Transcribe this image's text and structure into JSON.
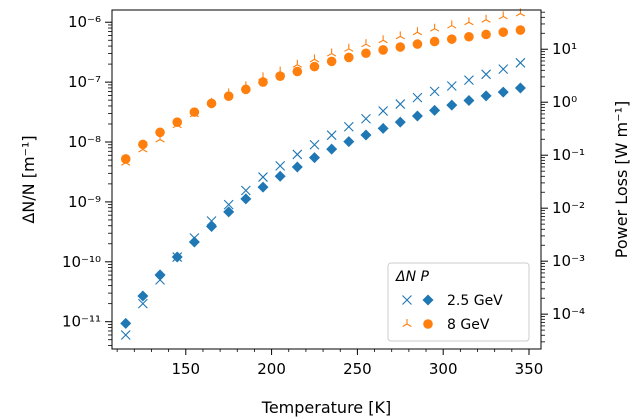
{
  "chart_data": {
    "type": "scatter",
    "x": [
      115,
      125,
      135,
      145,
      155,
      165,
      175,
      185,
      195,
      205,
      215,
      225,
      235,
      245,
      255,
      265,
      275,
      285,
      295,
      305,
      315,
      325,
      335,
      345
    ],
    "xlabel": "Temperature [K]",
    "xlim": [
      107,
      357
    ],
    "xticks": [
      150,
      200,
      250,
      300,
      350
    ],
    "left_axis": {
      "ylabel": "ΔN/N [m⁻¹]",
      "scale": "log",
      "ylim": [
        3.5e-12,
        1.6e-06
      ],
      "ticks": [
        {
          "value": 1e-11,
          "label": "10⁻¹¹"
        },
        {
          "value": 1e-10,
          "label": "10⁻¹⁰"
        },
        {
          "value": 1e-09,
          "label": "10⁻⁹"
        },
        {
          "value": 1e-08,
          "label": "10⁻⁸"
        },
        {
          "value": 1e-07,
          "label": "10⁻⁷"
        },
        {
          "value": 1e-06,
          "label": "10⁻⁶"
        }
      ]
    },
    "right_axis": {
      "ylabel": "Power Loss [W m⁻¹]",
      "scale": "log",
      "ylim": [
        2.2e-05,
        55
      ],
      "ticks": [
        {
          "value": 0.0001,
          "label": "10⁻⁴"
        },
        {
          "value": 0.001,
          "label": "10⁻³"
        },
        {
          "value": 0.01,
          "label": "10⁻²"
        },
        {
          "value": 0.1,
          "label": "10⁻¹"
        },
        {
          "value": 1,
          "label": "10⁰"
        },
        {
          "value": 10,
          "label": "10¹"
        }
      ]
    },
    "series": [
      {
        "name": "2.5 GeV",
        "quantity": "ΔN",
        "axis": "left",
        "marker": "x",
        "color": "#1f77b4",
        "values": [
          6e-12,
          2e-11,
          5e-11,
          1.2e-10,
          2.5e-10,
          4.8e-10,
          9e-10,
          1.55e-09,
          2.6e-09,
          4e-09,
          6.2e-09,
          9e-09,
          1.3e-08,
          1.8e-08,
          2.45e-08,
          3.3e-08,
          4.3e-08,
          5.5e-08,
          7e-08,
          8.6e-08,
          1.08e-07,
          1.35e-07,
          1.65e-07,
          2.1e-07
        ]
      },
      {
        "name": "2.5 GeV",
        "quantity": "P",
        "axis": "right",
        "marker": "D",
        "color": "#1f77b4",
        "values": [
          6.7e-05,
          0.00022,
          0.00055,
          0.0012,
          0.0023,
          0.0045,
          0.0085,
          0.015,
          0.025,
          0.04,
          0.06,
          0.09,
          0.13,
          0.18,
          0.24,
          0.32,
          0.42,
          0.55,
          0.7,
          0.88,
          1.08,
          1.32,
          1.55,
          1.85
        ]
      },
      {
        "name": "8 GeV",
        "quantity": "ΔN",
        "axis": "left",
        "marker": "tri_up",
        "color": "#ff7f0e",
        "values": [
          4.5e-09,
          7.5e-09,
          1.1e-08,
          1.9e-08,
          2.9e-08,
          4.5e-08,
          6.5e-08,
          8.5e-08,
          1.2e-07,
          1.5e-07,
          1.95e-07,
          2.4e-07,
          3e-07,
          3.6e-07,
          4.3e-07,
          5e-07,
          5.8e-07,
          6.8e-07,
          7.8e-07,
          8.8e-07,
          1e-06,
          1.1e-06,
          1.25e-06,
          1.4e-06
        ]
      },
      {
        "name": "8 GeV",
        "quantity": "P",
        "axis": "right",
        "marker": "o",
        "color": "#ff7f0e",
        "values": [
          0.085,
          0.16,
          0.27,
          0.42,
          0.65,
          0.95,
          1.3,
          1.75,
          2.4,
          3.1,
          3.8,
          4.7,
          5.9,
          7,
          8.4,
          9.7,
          11,
          12.5,
          14,
          15.5,
          17.2,
          19,
          21,
          23
        ]
      }
    ],
    "legend": {
      "position": "lower-right",
      "header": "ΔN P",
      "entries": [
        "2.5 GeV",
        "8 GeV"
      ]
    },
    "grid": false
  }
}
